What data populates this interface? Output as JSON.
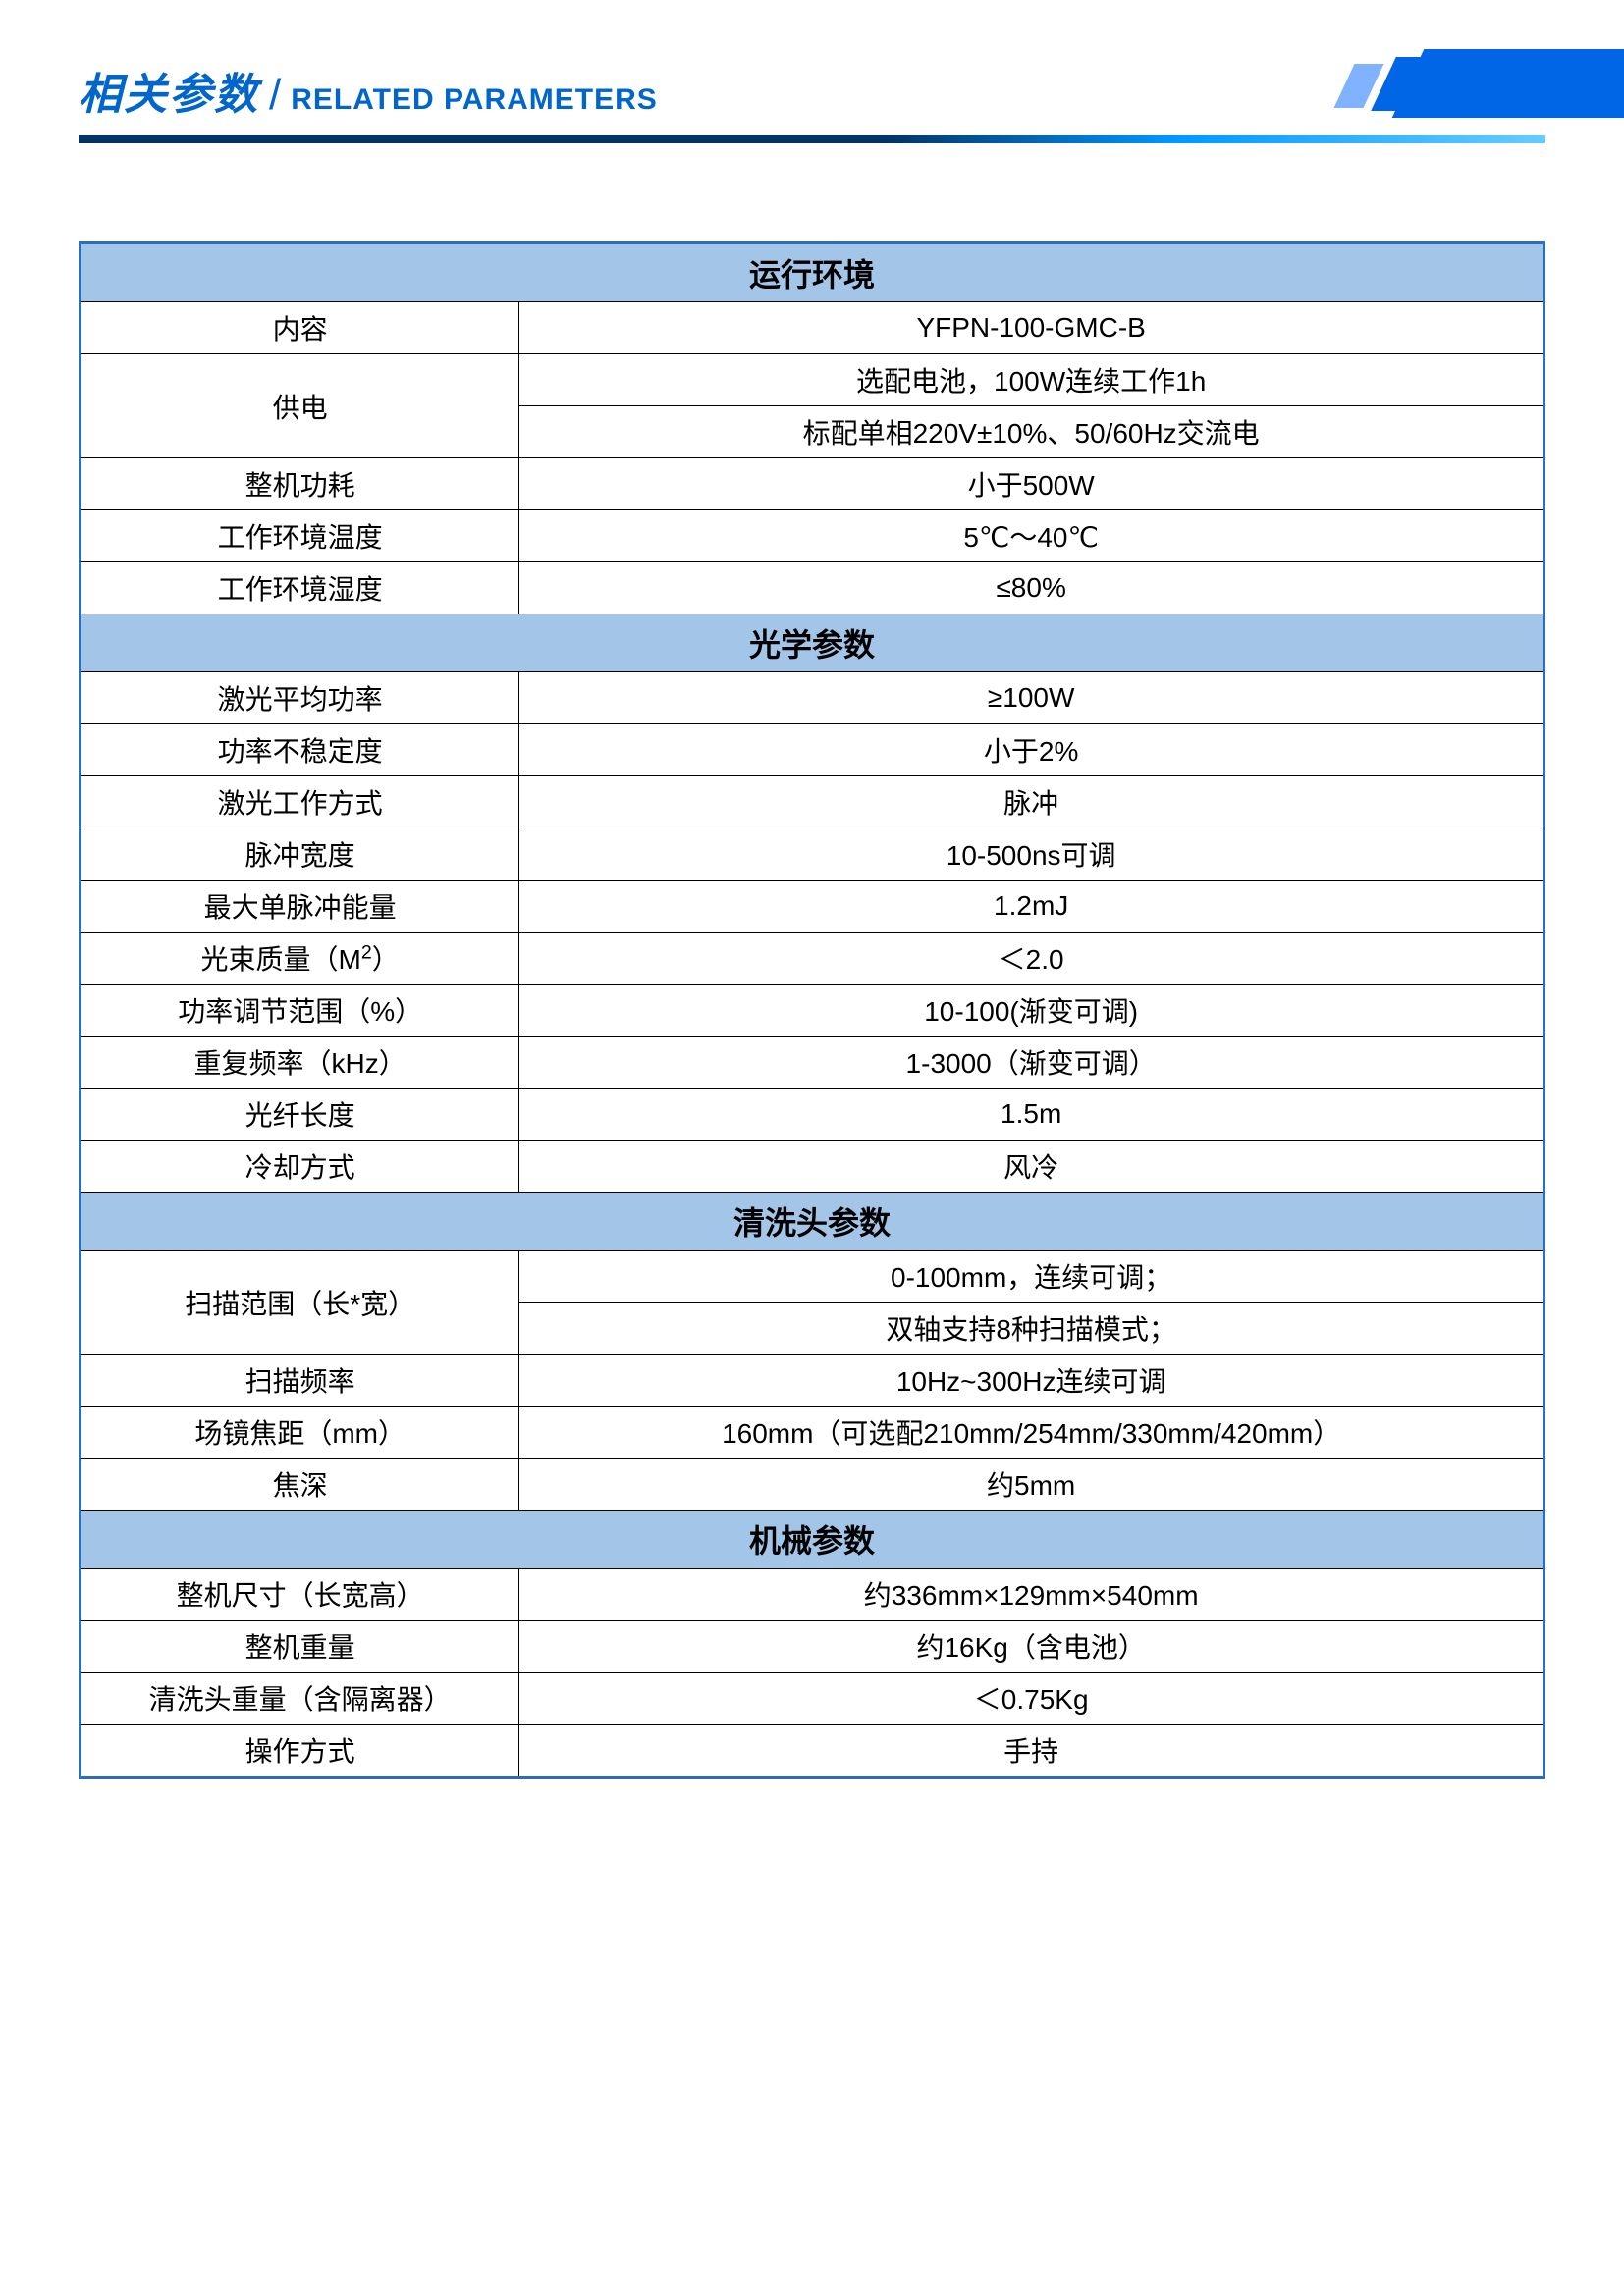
{
  "header": {
    "title_cn": "相关参数",
    "title_en": "RELATED PARAMETERS"
  },
  "colors": {
    "section_header_bg": "#a3c5e8",
    "table_border": "#2c6fb5",
    "cell_border": "#000000",
    "title_color": "#0066cc",
    "accent_blue": "#0066e6",
    "accent_light": "#80b3ff"
  },
  "sections": [
    {
      "title": "运行环境",
      "rows": [
        {
          "label": "内容",
          "values": [
            "YFPN-100-GMC-B"
          ]
        },
        {
          "label": "供电",
          "values": [
            "选配电池，100W连续工作1h",
            "标配单相220V±10%、50/60Hz交流电"
          ]
        },
        {
          "label": "整机功耗",
          "values": [
            "小于500W"
          ]
        },
        {
          "label": "工作环境温度",
          "values": [
            "5℃～40℃"
          ]
        },
        {
          "label": "工作环境湿度",
          "values": [
            "≤80%"
          ]
        }
      ]
    },
    {
      "title": "光学参数",
      "rows": [
        {
          "label": "激光平均功率",
          "values": [
            "≥100W"
          ]
        },
        {
          "label": "功率不稳定度",
          "values": [
            "小于2%"
          ]
        },
        {
          "label": "激光工作方式",
          "values": [
            "脉冲"
          ]
        },
        {
          "label": "脉冲宽度",
          "values": [
            "10-500ns可调"
          ]
        },
        {
          "label": "最大单脉冲能量",
          "values": [
            "1.2mJ"
          ]
        },
        {
          "label": "光束质量（M²）",
          "label_html": "光束质量（M<sup>2</sup>）",
          "values": [
            "＜2.0"
          ]
        },
        {
          "label": "功率调节范围（%）",
          "values": [
            "10-100(渐变可调)"
          ]
        },
        {
          "label": "重复频率（kHz）",
          "values": [
            "1-3000（渐变可调）"
          ]
        },
        {
          "label": "光纤长度",
          "values": [
            "1.5m"
          ]
        },
        {
          "label": "冷却方式",
          "values": [
            "风冷"
          ]
        }
      ]
    },
    {
      "title": "清洗头参数",
      "rows": [
        {
          "label": "扫描范围（长*宽）",
          "values": [
            "0-100mm，连续可调；",
            "双轴支持8种扫描模式；"
          ]
        },
        {
          "label": "扫描频率",
          "values": [
            "10Hz~300Hz连续可调"
          ]
        },
        {
          "label": "场镜焦距（mm）",
          "values": [
            "160mm（可选配210mm/254mm/330mm/420mm）"
          ]
        },
        {
          "label": "焦深",
          "values": [
            "约5mm"
          ]
        }
      ]
    },
    {
      "title": "机械参数",
      "rows": [
        {
          "label": "整机尺寸（长宽高）",
          "values": [
            "约336mm×129mm×540mm"
          ]
        },
        {
          "label": "整机重量",
          "values": [
            "约16Kg（含电池）"
          ]
        },
        {
          "label": "清洗头重量（含隔离器）",
          "values": [
            "＜0.75Kg"
          ]
        },
        {
          "label": "操作方式",
          "values": [
            "手持"
          ]
        }
      ]
    }
  ]
}
